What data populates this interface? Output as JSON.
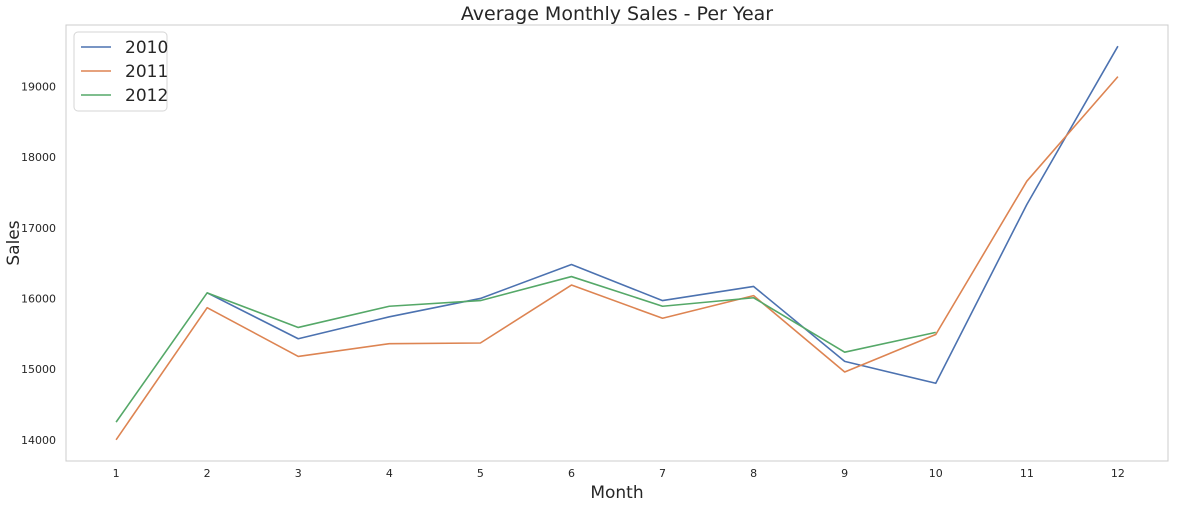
{
  "chart_data": {
    "type": "line",
    "title": "Average Monthly Sales - Per Year",
    "xlabel": "Month",
    "ylabel": "Sales",
    "x": [
      1,
      2,
      3,
      4,
      5,
      6,
      7,
      8,
      9,
      10,
      11,
      12
    ],
    "xlim": [
      0.45,
      12.55
    ],
    "ylim": [
      13700,
      19870
    ],
    "yticks": [
      14000,
      15000,
      16000,
      17000,
      18000,
      19000
    ],
    "grid": false,
    "legend_position": "top-left",
    "series": [
      {
        "name": "2010",
        "color": "#4c72b0",
        "values": [
          null,
          16080,
          15430,
          15740,
          16000,
          16480,
          15970,
          16170,
          15110,
          14800,
          17330,
          19570
        ]
      },
      {
        "name": "2011",
        "color": "#dd8452",
        "values": [
          14000,
          15870,
          15180,
          15360,
          15370,
          16190,
          15720,
          16040,
          14960,
          15490,
          17660,
          19140
        ]
      },
      {
        "name": "2012",
        "color": "#55a868",
        "values": [
          14250,
          16080,
          15590,
          15890,
          15970,
          16310,
          15890,
          16010,
          15240,
          15520,
          null,
          null
        ]
      }
    ]
  }
}
